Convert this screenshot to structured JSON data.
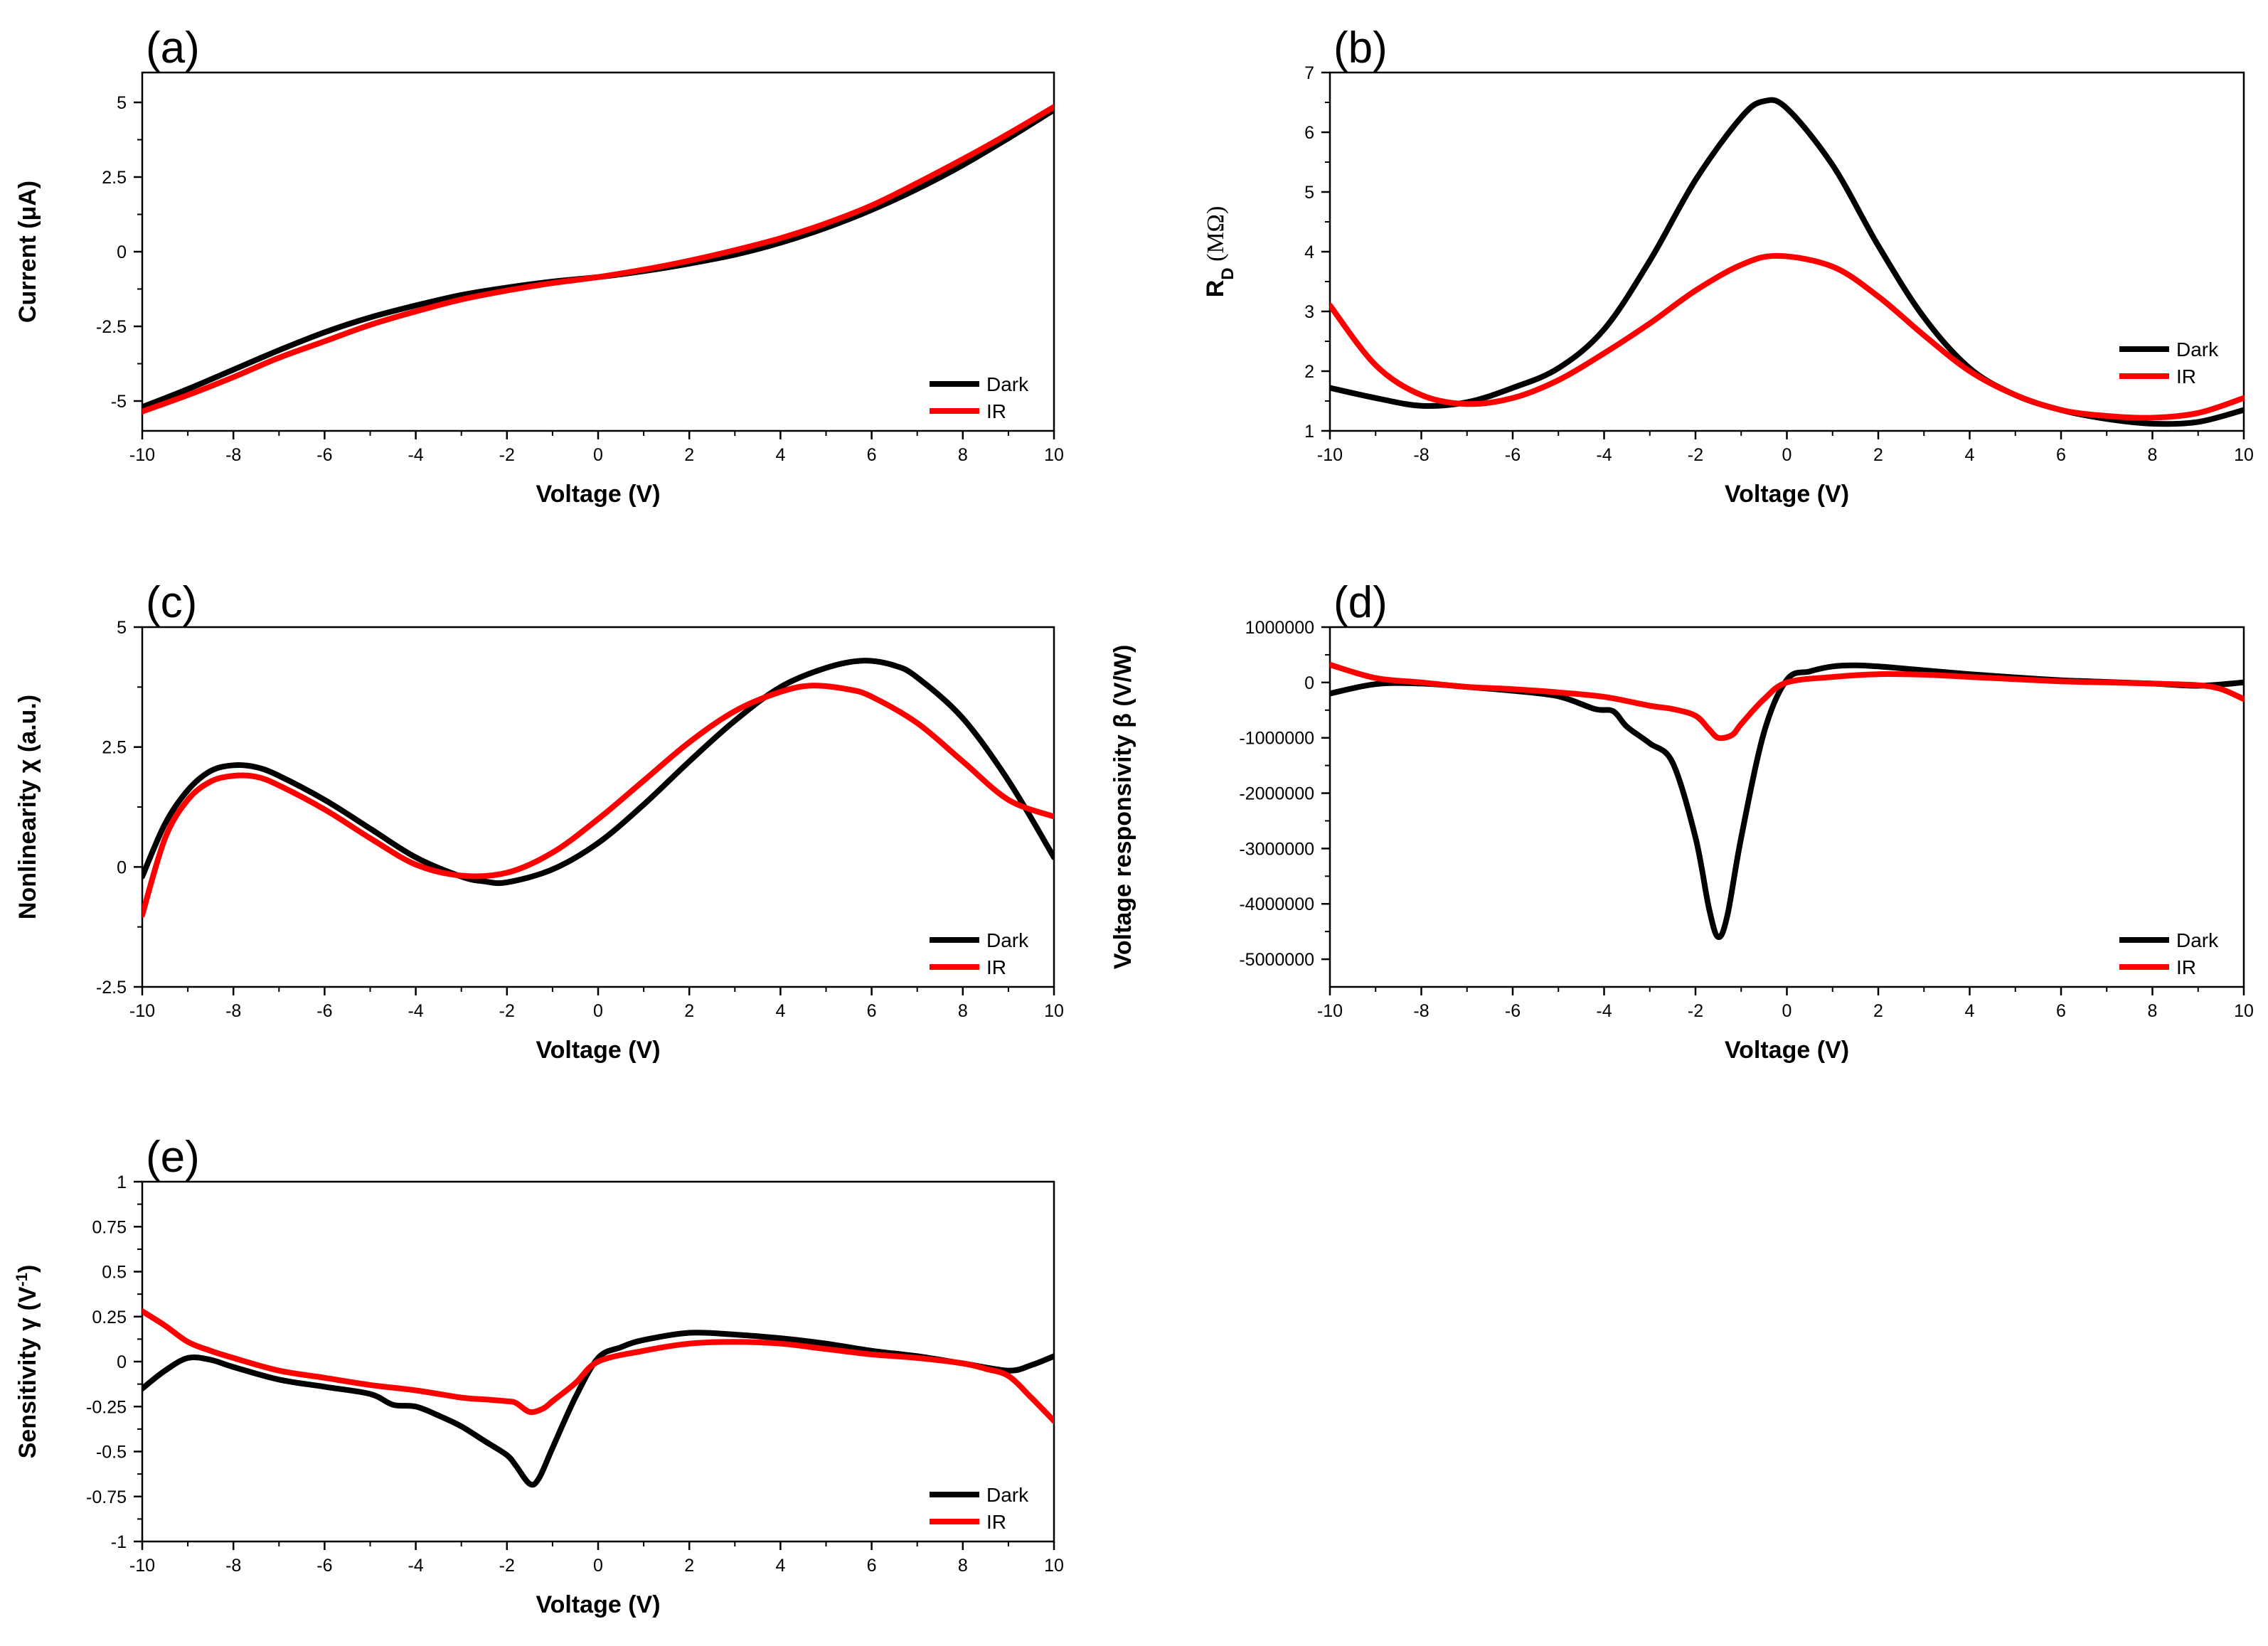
{
  "chart_data": [
    {
      "type": "line",
      "panel_label": "(a)",
      "title": "",
      "xlabel": "Voltage (V)",
      "ylabel": "Current (μA)",
      "xlim": [
        -10,
        10
      ],
      "ylim": [
        -6,
        6
      ],
      "x_ticks": [
        -10,
        -8,
        -6,
        -4,
        -2,
        0,
        2,
        4,
        6,
        8,
        10
      ],
      "x_tick_labels": [
        "-10",
        "-8",
        "-6",
        "-4",
        "-2",
        "0",
        "2",
        "4",
        "6",
        "8",
        "10"
      ],
      "y_ticks": [
        -5,
        -2.5,
        0,
        2.5,
        5
      ],
      "y_tick_labels": [
        "-5",
        "-2.5",
        "0",
        "2.5",
        "5"
      ],
      "legend": "bottom-right",
      "grid": false,
      "series": [
        {
          "name": "Dark",
          "color": "#000000",
          "x": [
            -10,
            -9,
            -8,
            -7,
            -6,
            -5,
            -4,
            -3,
            -2,
            -1,
            0,
            1,
            2,
            3,
            4,
            5,
            6,
            7,
            8,
            9,
            10
          ],
          "y": [
            -5.2,
            -4.6,
            -3.95,
            -3.3,
            -2.7,
            -2.2,
            -1.8,
            -1.45,
            -1.2,
            -1.0,
            -0.85,
            -0.65,
            -0.4,
            -0.1,
            0.3,
            0.8,
            1.4,
            2.1,
            2.9,
            3.8,
            4.75
          ]
        },
        {
          "name": "IR",
          "color": "#ff0000",
          "x": [
            -10,
            -9,
            -8,
            -7,
            -6,
            -5,
            -4,
            -3,
            -2,
            -1,
            0,
            1,
            2,
            3,
            4,
            5,
            6,
            7,
            8,
            9,
            10
          ],
          "y": [
            -5.35,
            -4.8,
            -4.2,
            -3.55,
            -3.0,
            -2.45,
            -2.0,
            -1.6,
            -1.3,
            -1.05,
            -0.85,
            -0.6,
            -0.3,
            0.05,
            0.45,
            0.95,
            1.55,
            2.3,
            3.1,
            3.95,
            4.85
          ]
        }
      ]
    },
    {
      "type": "line",
      "panel_label": "(b)",
      "title": "",
      "xlabel": "Voltage (V)",
      "ylabel": "RD (MΩ)",
      "ylabel_main": "R",
      "ylabel_sub": "D",
      "ylabel_unit": " (MΩ)",
      "xlim": [
        -10,
        10
      ],
      "ylim": [
        1,
        7
      ],
      "x_ticks": [
        -10,
        -8,
        -6,
        -4,
        -2,
        0,
        2,
        4,
        6,
        8,
        10
      ],
      "x_tick_labels": [
        "-10",
        "-8",
        "-6",
        "-4",
        "-2",
        "0",
        "2",
        "4",
        "6",
        "8",
        "10"
      ],
      "y_ticks": [
        1,
        2,
        3,
        4,
        5,
        6,
        7
      ],
      "y_tick_labels": [
        "1",
        "2",
        "3",
        "4",
        "5",
        "6",
        "7"
      ],
      "legend": "right",
      "grid": false,
      "series": [
        {
          "name": "Dark",
          "color": "#000000",
          "x": [
            -10,
            -9,
            -8,
            -7,
            -6,
            -5,
            -4,
            -3,
            -2,
            -1,
            -0.5,
            0,
            1,
            2,
            3,
            4,
            5,
            6,
            7,
            8,
            9,
            10
          ],
          "y": [
            1.72,
            1.55,
            1.42,
            1.48,
            1.72,
            2.05,
            2.7,
            3.85,
            5.2,
            6.25,
            6.52,
            6.4,
            5.45,
            4.1,
            2.9,
            2.05,
            1.6,
            1.35,
            1.2,
            1.12,
            1.15,
            1.35
          ]
        },
        {
          "name": "IR",
          "color": "#ff0000",
          "x": [
            -10,
            -9,
            -8,
            -7,
            -6,
            -5,
            -4,
            -3,
            -2,
            -1,
            -0.2,
            1,
            2,
            3,
            4,
            5,
            6,
            7,
            8,
            9,
            10
          ],
          "y": [
            3.1,
            2.1,
            1.6,
            1.45,
            1.55,
            1.85,
            2.3,
            2.8,
            3.35,
            3.78,
            3.93,
            3.75,
            3.25,
            2.6,
            2.0,
            1.6,
            1.35,
            1.25,
            1.22,
            1.3,
            1.55
          ]
        }
      ]
    },
    {
      "type": "line",
      "panel_label": "(c)",
      "title": "",
      "xlabel": "Voltage (V)",
      "ylabel": "Nonlinearity χ (a.u.)",
      "xlim": [
        -10,
        10
      ],
      "ylim": [
        -2.5,
        5
      ],
      "x_ticks": [
        -10,
        -8,
        -6,
        -4,
        -2,
        0,
        2,
        4,
        6,
        8,
        10
      ],
      "x_tick_labels": [
        "-10",
        "-8",
        "-6",
        "-4",
        "-2",
        "0",
        "2",
        "4",
        "6",
        "8",
        "10"
      ],
      "y_ticks": [
        -2.5,
        0,
        2.5,
        5
      ],
      "y_tick_labels": [
        "-2.5",
        "0",
        "2.5",
        "5"
      ],
      "legend": "bottom-right",
      "grid": false,
      "series": [
        {
          "name": "Dark",
          "color": "#000000",
          "x": [
            -10,
            -9.5,
            -9,
            -8.5,
            -8,
            -7.5,
            -7,
            -6,
            -5,
            -4,
            -3,
            -2.5,
            -2,
            -1,
            0,
            1,
            2,
            3,
            4,
            5,
            5.8,
            6.5,
            7,
            8,
            9,
            10
          ],
          "y": [
            -0.2,
            0.9,
            1.6,
            2.0,
            2.12,
            2.08,
            1.9,
            1.4,
            0.8,
            0.2,
            -0.2,
            -0.3,
            -0.32,
            -0.05,
            0.5,
            1.3,
            2.2,
            3.05,
            3.75,
            4.15,
            4.3,
            4.2,
            3.95,
            3.1,
            1.8,
            0.2
          ]
        },
        {
          "name": "IR",
          "color": "#ff0000",
          "x": [
            -10,
            -9.5,
            -9,
            -8.5,
            -8,
            -7.5,
            -7,
            -6,
            -5,
            -4,
            -3,
            -2,
            -1,
            0,
            1,
            2,
            3,
            4,
            4.7,
            5.5,
            6,
            7,
            8,
            9,
            10
          ],
          "y": [
            -1.0,
            0.6,
            1.4,
            1.78,
            1.9,
            1.88,
            1.7,
            1.2,
            0.6,
            0.05,
            -0.18,
            -0.12,
            0.3,
            1.0,
            1.8,
            2.6,
            3.25,
            3.65,
            3.78,
            3.7,
            3.55,
            3.0,
            2.2,
            1.4,
            1.05
          ]
        }
      ]
    },
    {
      "type": "line",
      "panel_label": "(d)",
      "title": "",
      "xlabel": "Voltage (V)",
      "ylabel": "Voltage responsivity β (V/W)",
      "xlim": [
        -10,
        10
      ],
      "ylim": [
        -5500000,
        1000000
      ],
      "x_ticks": [
        -10,
        -8,
        -6,
        -4,
        -2,
        0,
        2,
        4,
        6,
        8,
        10
      ],
      "x_tick_labels": [
        "-10",
        "-8",
        "-6",
        "-4",
        "-2",
        "0",
        "2",
        "4",
        "6",
        "8",
        "10"
      ],
      "y_ticks": [
        -5000000,
        -4000000,
        -3000000,
        -2000000,
        -1000000,
        0,
        1000000
      ],
      "y_tick_labels": [
        "-5000000",
        "-4000000",
        "-3000000",
        "-2000000",
        "-1000000",
        "0",
        "1000000"
      ],
      "legend": "bottom-right",
      "grid": false,
      "series": [
        {
          "name": "Dark",
          "color": "#000000",
          "x": [
            -10,
            -9,
            -8,
            -7,
            -6,
            -5,
            -4.2,
            -3.8,
            -3.5,
            -3,
            -2.5,
            -2,
            -1.7,
            -1.5,
            -1.3,
            -1,
            -0.5,
            0,
            0.5,
            1,
            1.5,
            2,
            3,
            4,
            5,
            6,
            7,
            8,
            9,
            10
          ],
          "y": [
            -200000,
            -30000,
            -20000,
            -80000,
            -150000,
            -250000,
            -480000,
            -520000,
            -800000,
            -1100000,
            -1450000,
            -2800000,
            -4100000,
            -4600000,
            -4200000,
            -2800000,
            -900000,
            50000,
            200000,
            290000,
            310000,
            290000,
            220000,
            150000,
            90000,
            40000,
            10000,
            -20000,
            -60000,
            0
          ]
        },
        {
          "name": "IR",
          "color": "#ff0000",
          "x": [
            -10,
            -9,
            -8,
            -7,
            -6,
            -5,
            -4,
            -3,
            -2.5,
            -2,
            -1.7,
            -1.5,
            -1.2,
            -1,
            -0.5,
            0,
            1,
            2,
            3,
            4,
            5,
            6,
            7,
            8,
            9,
            9.5,
            10
          ],
          "y": [
            320000,
            80000,
            0,
            -80000,
            -120000,
            -180000,
            -260000,
            -420000,
            -480000,
            -600000,
            -850000,
            -1000000,
            -950000,
            -750000,
            -300000,
            0,
            100000,
            150000,
            140000,
            100000,
            60000,
            20000,
            0,
            -20000,
            -50000,
            -120000,
            -300000
          ]
        }
      ]
    },
    {
      "type": "line",
      "panel_label": "(e)",
      "title": "",
      "xlabel": "Voltage (V)",
      "ylabel": "Sensitivity γ (V-1)",
      "ylabel_main": "Sensitivity γ (V",
      "ylabel_sup": "-1",
      "ylabel_end": ")",
      "xlim": [
        -10,
        10
      ],
      "ylim": [
        -1,
        1
      ],
      "x_ticks": [
        -10,
        -8,
        -6,
        -4,
        -2,
        0,
        2,
        4,
        6,
        8,
        10
      ],
      "x_tick_labels": [
        "-10",
        "-8",
        "-6",
        "-4",
        "-2",
        "0",
        "2",
        "4",
        "6",
        "8",
        "10"
      ],
      "y_ticks": [
        -1,
        -0.75,
        -0.5,
        -0.25,
        0,
        0.25,
        0.5,
        0.75,
        1
      ],
      "y_tick_labels": [
        "-1",
        "-0.75",
        "-0.5",
        "-0.25",
        "0",
        "0.25",
        "0.5",
        "0.75",
        "1"
      ],
      "legend": "bottom-right",
      "grid": false,
      "series": [
        {
          "name": "Dark",
          "color": "#000000",
          "x": [
            -10,
            -9.5,
            -9,
            -8.5,
            -8,
            -7,
            -6,
            -5,
            -4.5,
            -4,
            -3.5,
            -3,
            -2.5,
            -2,
            -1.8,
            -1.5,
            -1.3,
            -1,
            -0.5,
            0,
            0.5,
            1,
            2,
            3,
            4,
            5,
            6,
            7,
            8,
            9,
            9.5,
            10
          ],
          "y": [
            -0.15,
            -0.05,
            0.02,
            0.01,
            -0.03,
            -0.1,
            -0.14,
            -0.18,
            -0.24,
            -0.25,
            -0.3,
            -0.36,
            -0.44,
            -0.52,
            -0.58,
            -0.68,
            -0.65,
            -0.48,
            -0.2,
            0.02,
            0.08,
            0.12,
            0.16,
            0.15,
            0.13,
            0.1,
            0.06,
            0.03,
            -0.01,
            -0.05,
            -0.02,
            0.03
          ]
        },
        {
          "name": "IR",
          "color": "#ff0000",
          "x": [
            -10,
            -9.5,
            -9,
            -8.5,
            -8,
            -7,
            -6,
            -5,
            -4,
            -3,
            -2.5,
            -2,
            -1.8,
            -1.5,
            -1.2,
            -1,
            -0.5,
            0,
            1,
            2,
            3,
            4,
            5,
            6,
            7,
            8,
            8.5,
            9,
            9.5,
            10
          ],
          "y": [
            0.28,
            0.2,
            0.11,
            0.06,
            0.02,
            -0.05,
            -0.09,
            -0.13,
            -0.16,
            -0.2,
            -0.21,
            -0.22,
            -0.23,
            -0.28,
            -0.26,
            -0.22,
            -0.12,
            0.0,
            0.06,
            0.1,
            0.11,
            0.1,
            0.07,
            0.04,
            0.02,
            -0.01,
            -0.04,
            -0.08,
            -0.2,
            -0.33
          ]
        }
      ]
    }
  ]
}
